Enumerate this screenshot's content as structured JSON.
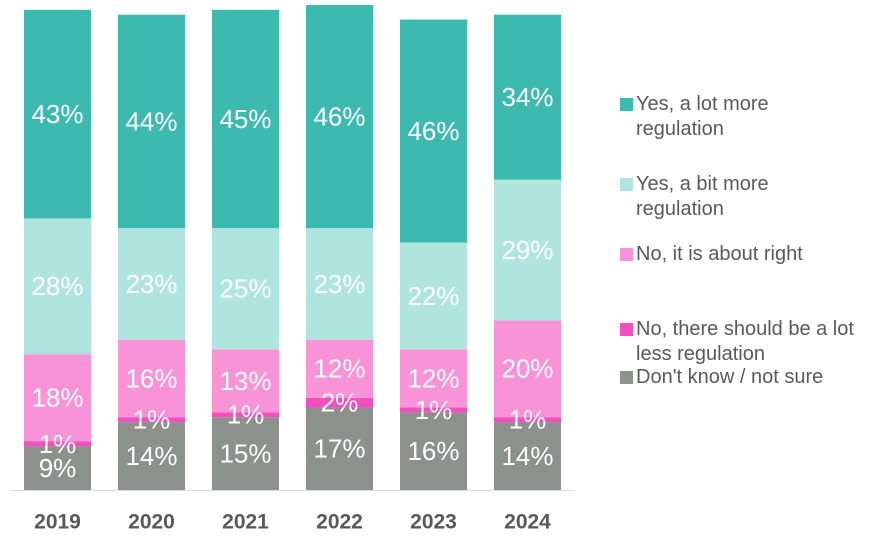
{
  "chart_data": {
    "type": "bar",
    "stacked": true,
    "categories": [
      "2019",
      "2020",
      "2021",
      "2022",
      "2023",
      "2024"
    ],
    "ylim": [
      0,
      100
    ],
    "series": [
      {
        "name": "Don't know / not sure",
        "color": "#8c918e",
        "values": [
          9,
          14,
          15,
          17,
          16,
          14
        ],
        "value_labels": [
          "9%",
          "14%",
          "15%",
          "17%",
          "16%",
          "14%"
        ]
      },
      {
        "name": "No, there should be a lot less regulation",
        "color": "#f04fbd",
        "values": [
          1,
          1,
          1,
          2,
          1,
          1
        ],
        "value_labels": [
          "1%",
          "1%",
          "1%",
          "2%",
          "1%",
          "1%"
        ]
      },
      {
        "name": "No, it is about right",
        "color": "#f893d8",
        "values": [
          18,
          16,
          13,
          12,
          12,
          20
        ],
        "value_labels": [
          "18%",
          "16%",
          "13%",
          "12%",
          "12%",
          "20%"
        ]
      },
      {
        "name": "Yes, a bit more regulation",
        "color": "#b0e5df",
        "values": [
          28,
          23,
          25,
          23,
          22,
          29
        ],
        "value_labels": [
          "28%",
          "23%",
          "25%",
          "23%",
          "22%",
          "29%"
        ]
      },
      {
        "name": "Yes, a lot more regulation",
        "color": "#3dbab0",
        "values": [
          43,
          44,
          45,
          46,
          46,
          34
        ],
        "value_labels": [
          "43%",
          "44%",
          "45%",
          "46%",
          "46%",
          "34%"
        ]
      }
    ]
  }
}
